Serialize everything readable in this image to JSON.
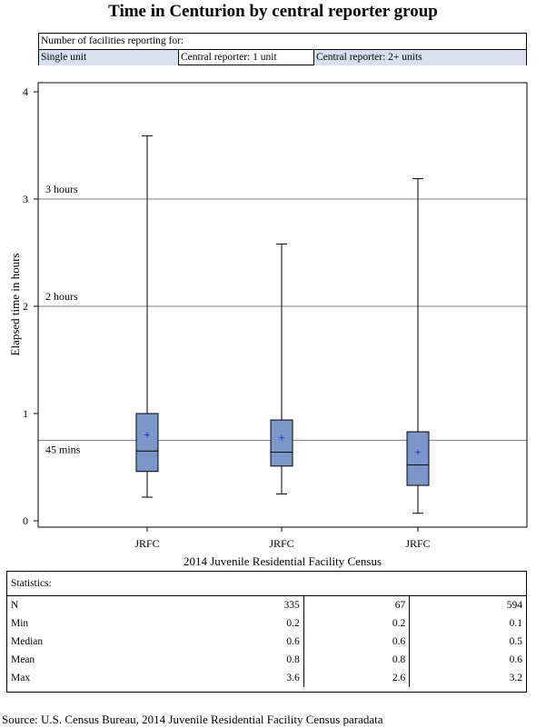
{
  "chart_data": {
    "type": "box",
    "title": "Time in Centurion by central reporter group",
    "xlabel": "2014 Juvenile Residential Facility Census",
    "ylabel": "Elapsed time in hours",
    "ylim": [
      0,
      4
    ],
    "yticks": [
      "0",
      "1",
      "2",
      "3",
      "4"
    ],
    "categories": [
      "JRFC",
      "JRFC",
      "JRFC"
    ],
    "legend": {
      "title": "Number of facilities reporting for:",
      "entries": [
        "Single unit",
        "Central reporter: 1 unit",
        "Central reporter: 2+ units"
      ],
      "placement": "top"
    },
    "reference_lines": [
      {
        "value": 3,
        "label": "3 hours"
      },
      {
        "value": 2,
        "label": "2 hours"
      },
      {
        "value": 0.75,
        "label": "45 mins"
      }
    ],
    "series": [
      {
        "name": "Single unit",
        "min": 0.22,
        "q1": 0.46,
        "median": 0.65,
        "mean": 0.8,
        "q3": 1.0,
        "max": 3.59
      },
      {
        "name": "Central reporter: 1 unit",
        "min": 0.25,
        "q1": 0.51,
        "median": 0.64,
        "mean": 0.77,
        "q3": 0.94,
        "max": 2.58
      },
      {
        "name": "Central reporter: 2+ units",
        "min": 0.07,
        "q1": 0.33,
        "median": 0.52,
        "mean": 0.64,
        "q3": 0.83,
        "max": 3.19
      }
    ],
    "colors": {
      "box": "#7b96c8",
      "mean": "#0000ff",
      "legend_fill": "#d9dff0",
      "refline": "#808080"
    }
  },
  "stats": {
    "title": "Statistics:",
    "rows": [
      {
        "label": "N",
        "values": [
          "335",
          "67",
          "594"
        ]
      },
      {
        "label": "Min",
        "values": [
          "0.2",
          "0.2",
          "0.1"
        ]
      },
      {
        "label": "Median",
        "values": [
          "0.6",
          "0.6",
          "0.5"
        ]
      },
      {
        "label": "Mean",
        "values": [
          "0.8",
          "0.8",
          "0.6"
        ]
      },
      {
        "label": "Max",
        "values": [
          "3.6",
          "2.6",
          "3.2"
        ]
      }
    ]
  },
  "source": "Source: U.S. Census Bureau, 2014 Juvenile Residential Facility Census paradata"
}
